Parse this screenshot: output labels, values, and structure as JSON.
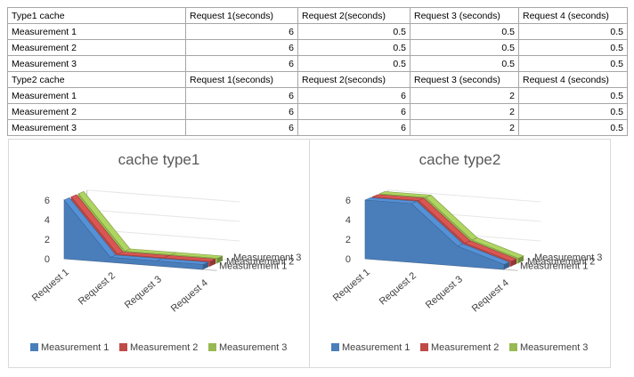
{
  "table": {
    "header1": [
      "Type1 cache",
      "Request 1(seconds)",
      "Request 2(seconds)",
      "Request 3 (seconds)",
      "Request 4 (seconds)"
    ],
    "rows1": [
      [
        "Measurement 1",
        "6",
        "0.5",
        "0.5",
        "0.5"
      ],
      [
        "Measurement 2",
        "6",
        "0.5",
        "0.5",
        "0.5"
      ],
      [
        "Measurement 3",
        "6",
        "0.5",
        "0.5",
        "0.5"
      ]
    ],
    "header2": [
      "Type2 cache",
      "Request 1(seconds)",
      "Request 2(seconds)",
      "Request 3 (seconds)",
      "Request 4 (seconds)"
    ],
    "rows2": [
      [
        "Measurement 1",
        "6",
        "6",
        "2",
        "0.5"
      ],
      [
        "Measurement 2",
        "6",
        "6",
        "2",
        "0.5"
      ],
      [
        "Measurement 3",
        "6",
        "6",
        "2",
        "0.5"
      ]
    ]
  },
  "chart_data": [
    {
      "type": "area",
      "title": "cache type1",
      "categories": [
        "Request 1",
        "Request 2",
        "Request 3",
        "Request 4"
      ],
      "series": [
        {
          "name": "Measurement 1",
          "values": [
            6,
            0.5,
            0.5,
            0.5
          ],
          "color": "#4a7ebb"
        },
        {
          "name": "Measurement 2",
          "values": [
            6,
            0.5,
            0.5,
            0.5
          ],
          "color": "#be4b48"
        },
        {
          "name": "Measurement 3",
          "values": [
            6,
            0.5,
            0.5,
            0.5
          ],
          "color": "#98b954"
        }
      ],
      "y_ticks": [
        "0",
        "2",
        "4",
        "6"
      ],
      "ylim": [
        0,
        6
      ],
      "style": "3d",
      "legend": "bottom"
    },
    {
      "type": "area",
      "title": "cache type2",
      "categories": [
        "Request 1",
        "Request 2",
        "Request 3",
        "Request 4"
      ],
      "series": [
        {
          "name": "Measurement 1",
          "values": [
            6,
            6,
            2,
            0.5
          ],
          "color": "#4a7ebb"
        },
        {
          "name": "Measurement 2",
          "values": [
            6,
            6,
            2,
            0.5
          ],
          "color": "#be4b48"
        },
        {
          "name": "Measurement 3",
          "values": [
            6,
            6,
            2,
            0.5
          ],
          "color": "#98b954"
        }
      ],
      "y_ticks": [
        "0",
        "2",
        "4",
        "6"
      ],
      "ylim": [
        0,
        6
      ],
      "style": "3d",
      "legend": "bottom"
    }
  ]
}
